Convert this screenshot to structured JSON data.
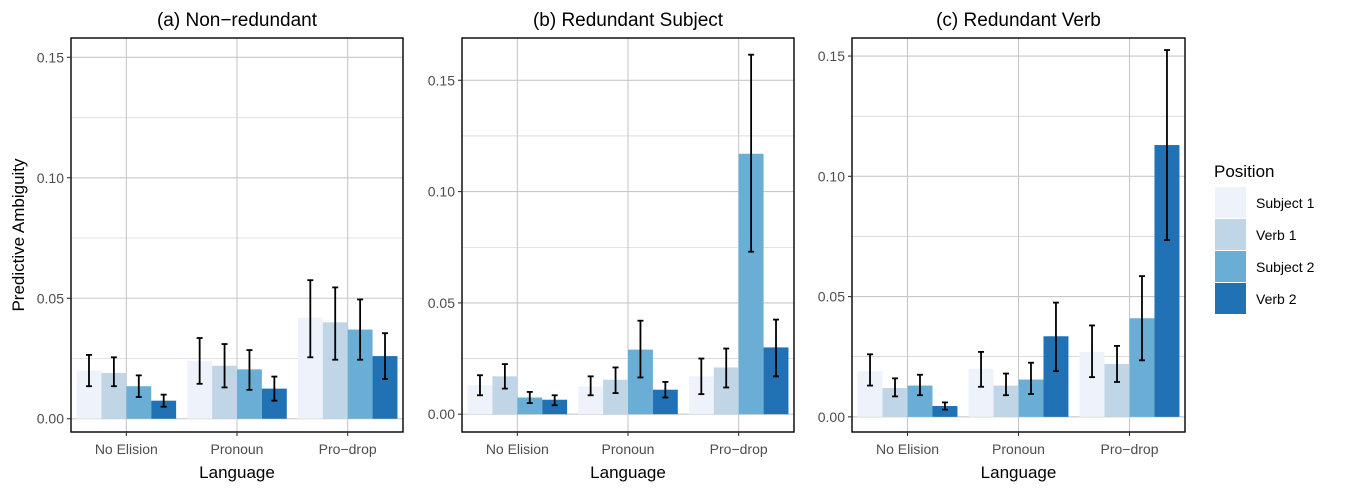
{
  "colors": {
    "Subject 1": "#eef3fb",
    "Verb 1": "#c0d6e6",
    "Subject 2": "#6aaed6",
    "Verb 2": "#2171b5",
    "grid": "#c8c8c8",
    "errorbar": "#000000"
  },
  "shared": {
    "ylabel": "Predictive Ambiguity",
    "xlabel": "Language",
    "legend_title": "Position",
    "legend_items": [
      "Subject 1",
      "Verb 1",
      "Subject 2",
      "Verb 2"
    ],
    "categories": [
      "No Elision",
      "Pronoun",
      "Pro−drop"
    ]
  },
  "chart_data": [
    {
      "type": "bar",
      "title": "(a) Non−redundant",
      "xlabel": "Language",
      "ylabel": "Predictive Ambiguity",
      "categories": [
        "No Elision",
        "Pronoun",
        "Pro−drop"
      ],
      "ylim": [
        -0.0055,
        0.158
      ],
      "yticks": [
        0.0,
        0.05,
        0.1,
        0.15
      ],
      "yticklabels": [
        "0.00",
        "0.05",
        "0.10",
        "0.15"
      ],
      "grid": true,
      "series": [
        {
          "name": "Subject 1",
          "values": [
            0.02,
            0.024,
            0.042
          ],
          "err_low": [
            0.0135,
            0.0145,
            0.0255
          ],
          "err_high": [
            0.0265,
            0.0335,
            0.0575
          ]
        },
        {
          "name": "Verb 1",
          "values": [
            0.019,
            0.022,
            0.04
          ],
          "err_low": [
            0.0135,
            0.013,
            0.0245
          ],
          "err_high": [
            0.0255,
            0.031,
            0.0545
          ]
        },
        {
          "name": "Subject 2",
          "values": [
            0.0135,
            0.0205,
            0.037
          ],
          "err_low": [
            0.009,
            0.012,
            0.0245
          ],
          "err_high": [
            0.018,
            0.0285,
            0.0495
          ]
        },
        {
          "name": "Verb 2",
          "values": [
            0.0075,
            0.0125,
            0.026
          ],
          "err_low": [
            0.005,
            0.0075,
            0.0165
          ],
          "err_high": [
            0.01,
            0.0175,
            0.0355
          ]
        }
      ]
    },
    {
      "type": "bar",
      "title": "(b) Redundant Subject",
      "xlabel": "Language",
      "ylabel": "",
      "categories": [
        "No Elision",
        "Pronoun",
        "Pro−drop"
      ],
      "ylim": [
        -0.008,
        0.169
      ],
      "yticks": [
        0.0,
        0.05,
        0.1,
        0.15
      ],
      "yticklabels": [
        "0.00",
        "0.05",
        "0.10",
        "0.15"
      ],
      "grid": true,
      "series": [
        {
          "name": "Subject 1",
          "values": [
            0.013,
            0.0125,
            0.017
          ],
          "err_low": [
            0.0085,
            0.0085,
            0.009
          ],
          "err_high": [
            0.0175,
            0.017,
            0.025
          ]
        },
        {
          "name": "Verb 1",
          "values": [
            0.017,
            0.0155,
            0.021
          ],
          "err_low": [
            0.0115,
            0.0095,
            0.012
          ],
          "err_high": [
            0.0225,
            0.021,
            0.0295
          ]
        },
        {
          "name": "Subject 2",
          "values": [
            0.0075,
            0.029,
            0.117
          ],
          "err_low": [
            0.005,
            0.0165,
            0.073
          ],
          "err_high": [
            0.01,
            0.042,
            0.1615
          ]
        },
        {
          "name": "Verb 2",
          "values": [
            0.0065,
            0.011,
            0.03
          ],
          "err_low": [
            0.004,
            0.0075,
            0.017
          ],
          "err_high": [
            0.0085,
            0.0145,
            0.0425
          ]
        }
      ]
    },
    {
      "type": "bar",
      "title": "(c) Redundant Verb",
      "xlabel": "Language",
      "ylabel": "",
      "categories": [
        "No Elision",
        "Pronoun",
        "Pro−drop"
      ],
      "ylim": [
        -0.0063,
        0.1575
      ],
      "yticks": [
        0.0,
        0.05,
        0.1,
        0.15
      ],
      "yticklabels": [
        "0.00",
        "0.05",
        "0.10",
        "0.15"
      ],
      "grid": true,
      "series": [
        {
          "name": "Subject 1",
          "values": [
            0.019,
            0.02,
            0.027
          ],
          "err_low": [
            0.013,
            0.0125,
            0.0165
          ],
          "err_high": [
            0.026,
            0.027,
            0.038
          ]
        },
        {
          "name": "Verb 1",
          "values": [
            0.012,
            0.013,
            0.022
          ],
          "err_low": [
            0.0085,
            0.009,
            0.0145
          ],
          "err_high": [
            0.016,
            0.018,
            0.0295
          ]
        },
        {
          "name": "Subject 2",
          "values": [
            0.013,
            0.0155,
            0.041
          ],
          "err_low": [
            0.009,
            0.0095,
            0.0235
          ],
          "err_high": [
            0.0175,
            0.0225,
            0.0585
          ]
        },
        {
          "name": "Verb 2",
          "values": [
            0.0045,
            0.0335,
            0.113
          ],
          "err_low": [
            0.003,
            0.019,
            0.0735
          ],
          "err_high": [
            0.006,
            0.0475,
            0.1525
          ]
        }
      ]
    }
  ]
}
